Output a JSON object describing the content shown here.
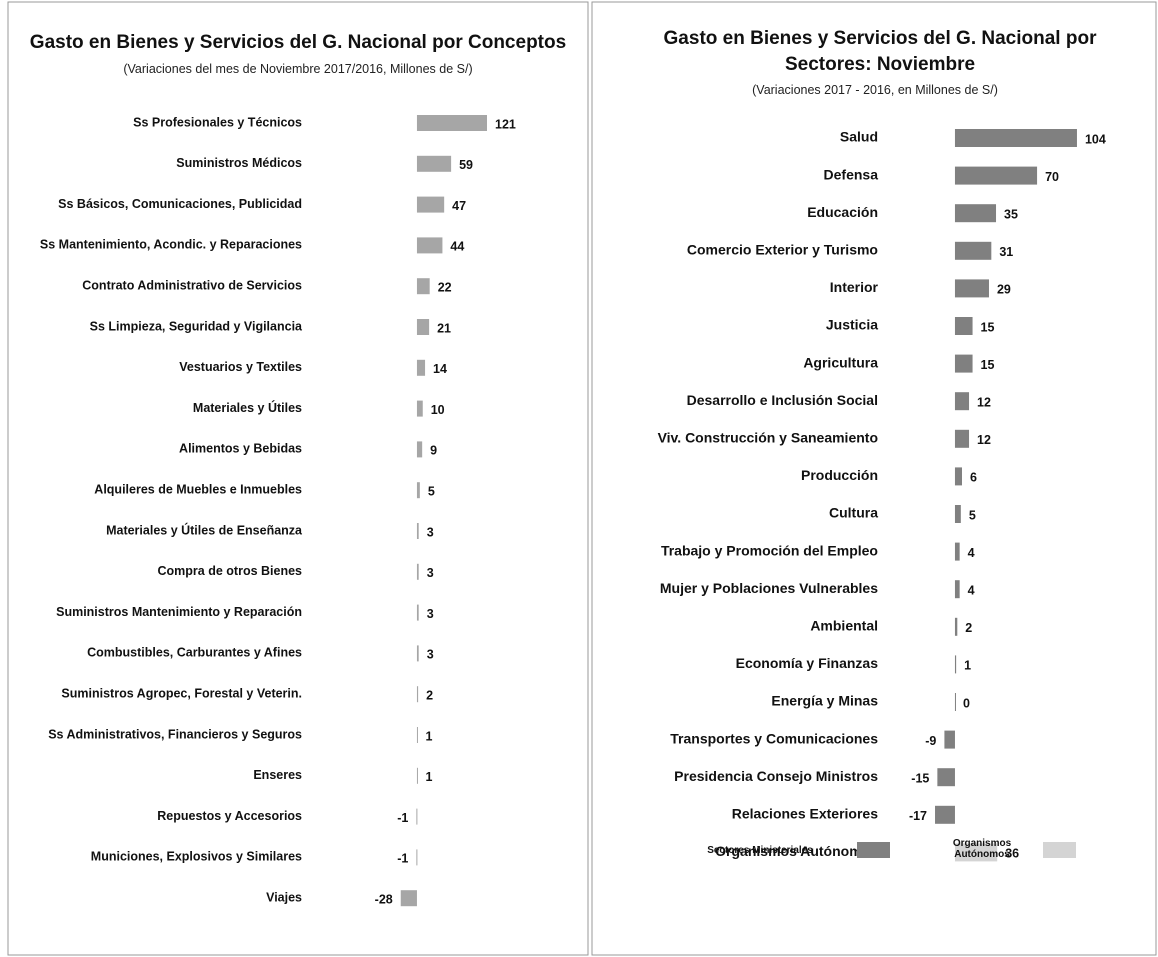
{
  "chart_data": [
    {
      "type": "bar",
      "title": "Gasto en Bienes y Servicios del G. Nacional por Conceptos",
      "subtitle": "(Variaciones del mes de Noviembre 2017/2016, Millones de S/)",
      "categories": [
        "Ss Profesionales y Técnicos",
        "Suministros Médicos",
        "Ss Básicos, Comunicaciones, Publicidad",
        "Ss Mantenimiento, Acondic. y  Reparaciones",
        "Contrato Administrativo de Servicios",
        "Ss Limpieza, Seguridad y Vigilancia",
        "Vestuarios y Textiles",
        "Materiales y  Útiles",
        "Alimentos y Bebidas",
        "Alquileres de Muebles e Inmuebles",
        "Materiales y Útiles de Enseñanza",
        "Compra de otros Bienes",
        "Suministros Mantenimiento y Reparación",
        "Combustibles, Carburantes y Afines",
        "Suministros Agropec, Forestal y Veterin.",
        "Ss Administrativos, Financieros y Seguros",
        "Enseres",
        "Repuestos y Accesorios",
        "Municiones,  Explosivos y Similares",
        "Viajes"
      ],
      "values": [
        121,
        59,
        47,
        44,
        22,
        21,
        14,
        10,
        9,
        5,
        3,
        3,
        3,
        3,
        2,
        1,
        1,
        -1,
        -1,
        -28
      ],
      "color": "#a6a6a6",
      "xlim": [
        -40,
        140
      ]
    },
    {
      "type": "bar",
      "title": "Gasto en Bienes y Servicios del G. Nacional por Sectores: Noviembre",
      "subtitle": "(Variaciones 2017 - 2016, en Millones de S/)",
      "categories": [
        "Salud",
        "Defensa",
        "Educación",
        "Comercio Exterior y Turismo",
        "Interior",
        "Justicia",
        "Agricultura",
        "Desarrollo e Inclusión Social",
        "Viv. Construcción y Saneamiento",
        "Producción",
        "Cultura",
        "Trabajo y Promoción del Empleo",
        "Mujer y Poblaciones Vulnerables",
        "Ambiental",
        "Economía y Finanzas",
        "Energía y Minas",
        "Transportes y Comunicaciones",
        "Presidencia Consejo Ministros",
        "Relaciones Exteriores",
        "Organismos Autónomos"
      ],
      "series": [
        {
          "name": "Sectores Ministeriales",
          "color": "#808080",
          "values": [
            104,
            70,
            35,
            31,
            29,
            15,
            15,
            12,
            12,
            6,
            5,
            4,
            4,
            2,
            1,
            0,
            -9,
            -15,
            -17,
            null
          ]
        },
        {
          "name": "Organismos Autónomos",
          "color": "#d4d4d4",
          "values": [
            null,
            null,
            null,
            null,
            null,
            null,
            null,
            null,
            null,
            null,
            null,
            null,
            null,
            null,
            null,
            null,
            null,
            null,
            null,
            36
          ]
        }
      ],
      "xlim": [
        -20,
        110
      ]
    }
  ]
}
